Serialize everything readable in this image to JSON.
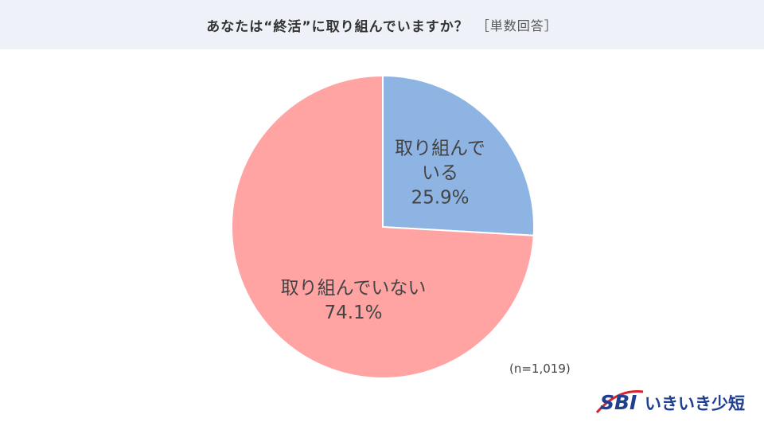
{
  "header": {
    "title": "あなたは“終活”に取り組んでいますか？",
    "note": "［単数回答］"
  },
  "chart_data": {
    "type": "pie",
    "start_angle_deg": 0,
    "direction": "clockwise",
    "slices": [
      {
        "label_lines": [
          "取り組んで",
          "いる"
        ],
        "value": 25.9,
        "value_label": "25.9%",
        "color": "#8eb4e3"
      },
      {
        "label_lines": [
          "取り組んでいない"
        ],
        "value": 74.1,
        "value_label": "74.1%",
        "color": "#ffa3a3"
      }
    ],
    "slice_border_color": "#ffffff",
    "sample_size": "(n=1,019)"
  },
  "logo": {
    "mark": "SBI",
    "name": "いきいき少短",
    "color": "#1f3f91",
    "accent_color": "#d9232e"
  }
}
